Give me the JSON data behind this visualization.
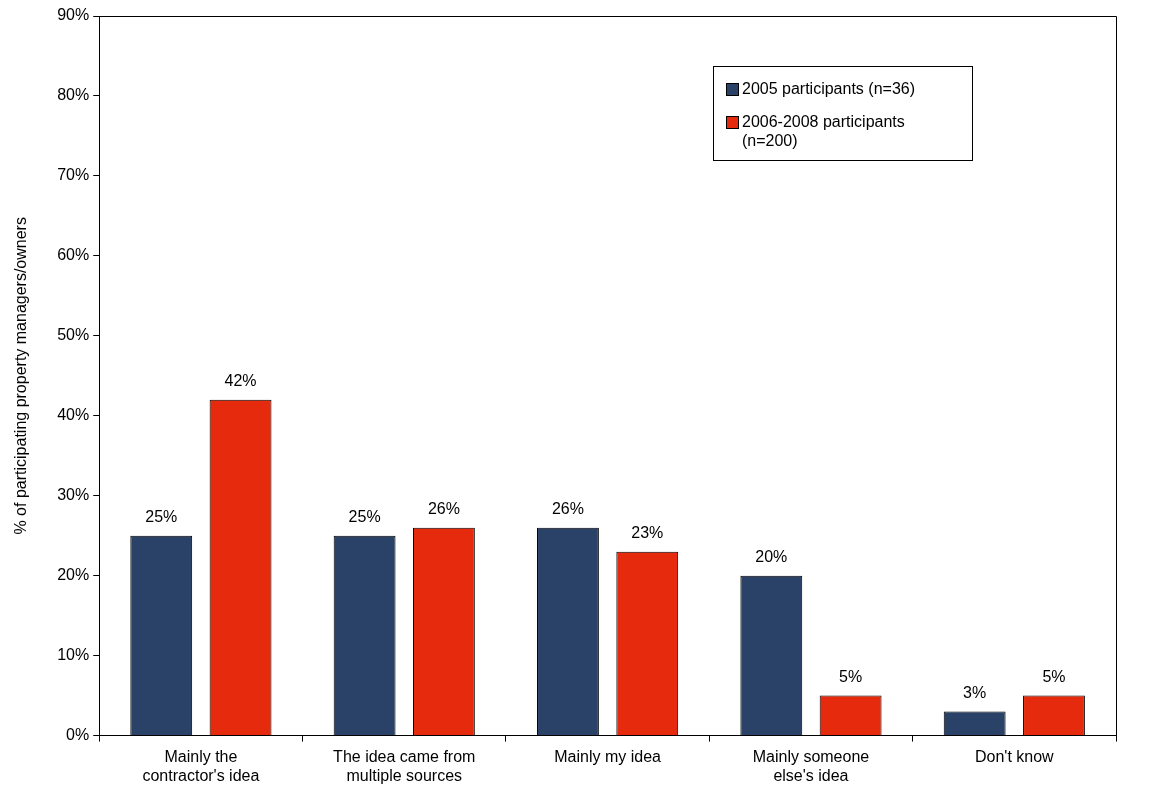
{
  "chart_data": {
    "type": "bar",
    "ylabel": "% of participating property managers/owners",
    "categories": [
      "Mainly the contractor's idea",
      "The idea came from multiple sources",
      "Mainly my idea",
      "Mainly someone else's idea",
      "Don't know"
    ],
    "series": [
      {
        "name": "2005 participants (n=36)",
        "color": "#2a4268",
        "values": [
          25,
          25,
          26,
          20,
          3
        ],
        "value_labels": [
          "25%",
          "25%",
          "26%",
          "20%",
          "3%"
        ]
      },
      {
        "name": "2006-2008 participants (n=200)",
        "color": "#e62a0d",
        "values": [
          42,
          26,
          23,
          5,
          5
        ],
        "value_labels": [
          "42%",
          "26%",
          "23%",
          "5%",
          "5%"
        ]
      }
    ],
    "ylim": [
      0,
      90
    ],
    "yticks": [
      {
        "value": 0,
        "label": "0%"
      },
      {
        "value": 10,
        "label": "10%"
      },
      {
        "value": 20,
        "label": "20%"
      },
      {
        "value": 30,
        "label": "30%"
      },
      {
        "value": 40,
        "label": "40%"
      },
      {
        "value": 50,
        "label": "50%"
      },
      {
        "value": 60,
        "label": "60%"
      },
      {
        "value": 70,
        "label": "70%"
      },
      {
        "value": 80,
        "label": "80%"
      },
      {
        "value": 90,
        "label": "90%"
      }
    ],
    "grid": false,
    "legend": "top right"
  }
}
